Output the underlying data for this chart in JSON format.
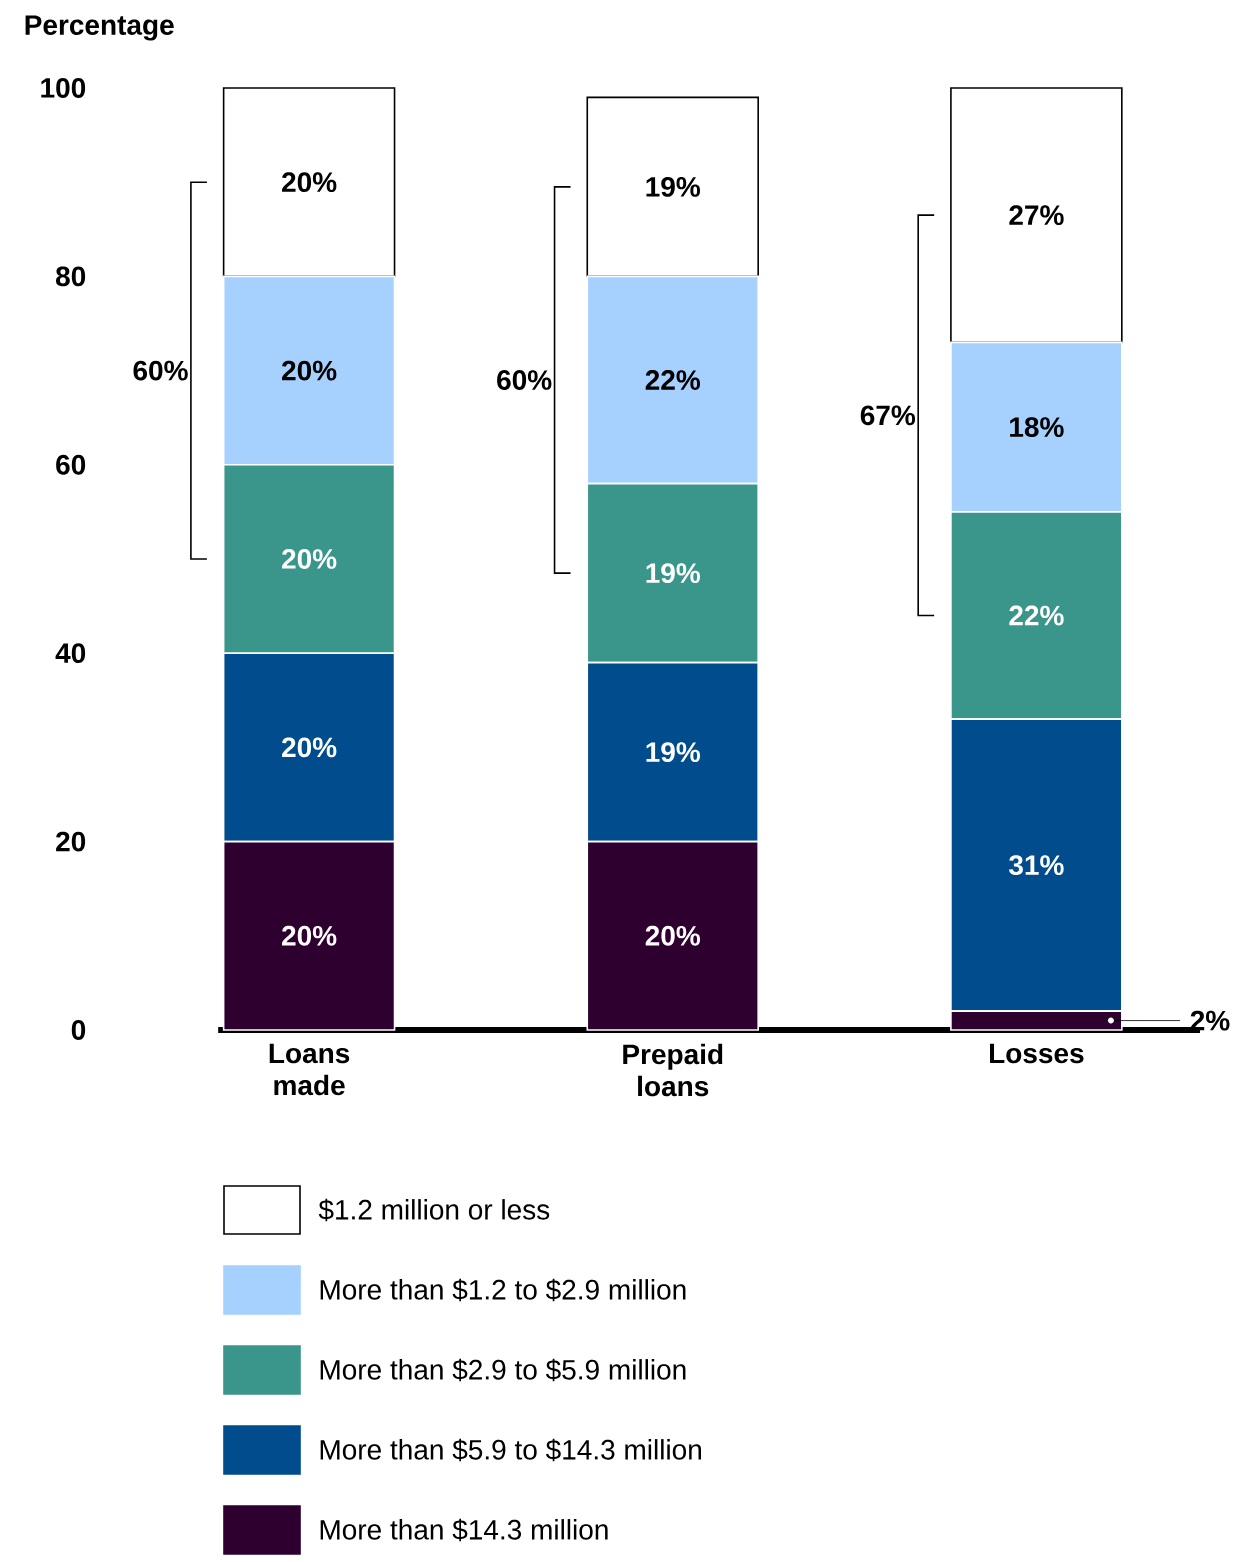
{
  "chart_data": {
    "type": "bar",
    "stacked": true,
    "ylabel": "Percentage",
    "categories": [
      "Loans made",
      "Prepaid loans",
      "Losses"
    ],
    "series": [
      {
        "name": "More than $14.3 million",
        "color": "#2e0030",
        "values": [
          20,
          20,
          2
        ],
        "value_labels": [
          "20%",
          "20%",
          "2%"
        ]
      },
      {
        "name": "More than $5.9 to $14.3 million",
        "color": "#004c8c",
        "values": [
          20,
          19,
          31
        ],
        "value_labels": [
          "20%",
          "19%",
          "31%"
        ]
      },
      {
        "name": "More than $2.9 to $5.9 million",
        "color": "#3a968a",
        "values": [
          20,
          19,
          22
        ],
        "value_labels": [
          "20%",
          "19%",
          "22%"
        ]
      },
      {
        "name": "More than $1.2 to $2.9 million",
        "color": "#a6d1ff",
        "values": [
          20,
          22,
          18
        ],
        "value_labels": [
          "20%",
          "22%",
          "18%"
        ]
      },
      {
        "name": "$1.2 million or less",
        "color": "#ffffff",
        "values": [
          20,
          19,
          27
        ],
        "value_labels": [
          "20%",
          "19%",
          "27%"
        ]
      }
    ],
    "ylim": [
      0,
      100
    ],
    "yticks": [
      0,
      20,
      40,
      60,
      80,
      100
    ],
    "grid": false,
    "legend": "bottom",
    "annotations": [
      "60%",
      "60%",
      "67%"
    ]
  }
}
